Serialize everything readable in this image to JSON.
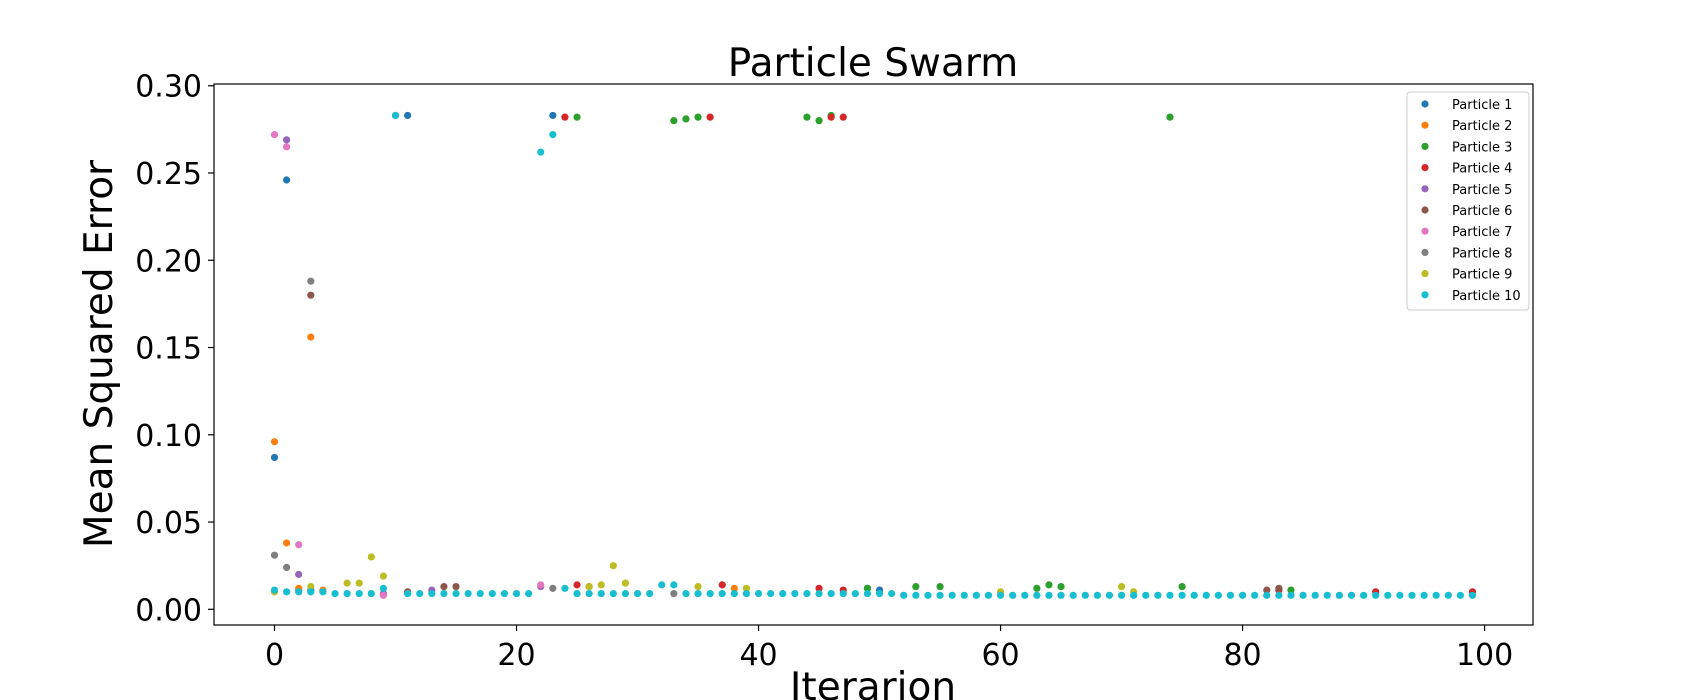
{
  "chart_data": {
    "type": "scatter",
    "title": "Particle Swarm",
    "xlabel": "Iterarion",
    "ylabel": "Mean Squared Error",
    "xlim": [
      -5,
      104
    ],
    "ylim": [
      -0.009,
      0.301
    ],
    "xticks": [
      0,
      20,
      40,
      60,
      80,
      100
    ],
    "xtick_labels": [
      "0",
      "20",
      "40",
      "60",
      "80",
      "100"
    ],
    "yticks": [
      0.0,
      0.05,
      0.1,
      0.15,
      0.2,
      0.25,
      0.3
    ],
    "ytick_labels": [
      "0.00",
      "0.05",
      "0.10",
      "0.15",
      "0.20",
      "0.25",
      "0.30"
    ],
    "grid": false,
    "legend_position": "top-right",
    "series": [
      {
        "name": "Particle 1",
        "color": "#1f77b4",
        "points": [
          [
            0,
            0.087
          ],
          [
            1,
            0.246
          ],
          [
            2,
            0.011
          ],
          [
            3,
            0.011
          ],
          [
            10,
            0.283
          ],
          [
            11,
            0.283
          ],
          [
            23,
            0.283
          ],
          [
            49,
            0.012
          ],
          [
            50,
            0.011
          ]
        ]
      },
      {
        "name": "Particle 2",
        "color": "#ff7f0e",
        "points": [
          [
            0,
            0.096
          ],
          [
            1,
            0.038
          ],
          [
            2,
            0.012
          ],
          [
            3,
            0.156
          ],
          [
            4,
            0.011
          ],
          [
            38,
            0.012
          ]
        ]
      },
      {
        "name": "Particle 3",
        "color": "#2ca02c",
        "points": [
          [
            25,
            0.282
          ],
          [
            33,
            0.28
          ],
          [
            34,
            0.281
          ],
          [
            35,
            0.282
          ],
          [
            44,
            0.282
          ],
          [
            45,
            0.28
          ],
          [
            46,
            0.283
          ],
          [
            74,
            0.282
          ],
          [
            11,
            0.009
          ],
          [
            49,
            0.012
          ],
          [
            53,
            0.013
          ],
          [
            55,
            0.013
          ],
          [
            63,
            0.012
          ],
          [
            64,
            0.014
          ],
          [
            65,
            0.013
          ],
          [
            75,
            0.013
          ],
          [
            84,
            0.011
          ]
        ]
      },
      {
        "name": "Particle 4",
        "color": "#d62728",
        "points": [
          [
            24,
            0.282
          ],
          [
            36,
            0.282
          ],
          [
            46,
            0.282
          ],
          [
            47,
            0.282
          ],
          [
            25,
            0.014
          ],
          [
            37,
            0.014
          ],
          [
            45,
            0.012
          ],
          [
            47,
            0.011
          ],
          [
            83,
            0.011
          ],
          [
            91,
            0.01
          ],
          [
            99,
            0.01
          ]
        ]
      },
      {
        "name": "Particle 5",
        "color": "#9467bd",
        "points": [
          [
            1,
            0.269
          ],
          [
            2,
            0.02
          ],
          [
            9,
            0.009
          ],
          [
            13,
            0.011
          ],
          [
            22,
            0.013
          ]
        ]
      },
      {
        "name": "Particle 6",
        "color": "#8c564b",
        "points": [
          [
            3,
            0.18
          ],
          [
            11,
            0.01
          ],
          [
            14,
            0.013
          ],
          [
            15,
            0.013
          ],
          [
            26,
            0.013
          ],
          [
            82,
            0.011
          ],
          [
            83,
            0.012
          ]
        ]
      },
      {
        "name": "Particle 7",
        "color": "#e377c2",
        "points": [
          [
            0,
            0.272
          ],
          [
            1,
            0.265
          ],
          [
            2,
            0.037
          ],
          [
            9,
            0.008
          ],
          [
            22,
            0.014
          ]
        ]
      },
      {
        "name": "Particle 8",
        "color": "#7f7f7f",
        "points": [
          [
            0,
            0.031
          ],
          [
            1,
            0.024
          ],
          [
            3,
            0.188
          ],
          [
            23,
            0.012
          ],
          [
            33,
            0.009
          ]
        ]
      },
      {
        "name": "Particle 9",
        "color": "#bcbd22",
        "points": [
          [
            0,
            0.01
          ],
          [
            3,
            0.013
          ],
          [
            6,
            0.015
          ],
          [
            7,
            0.015
          ],
          [
            8,
            0.03
          ],
          [
            9,
            0.019
          ],
          [
            26,
            0.013
          ],
          [
            27,
            0.014
          ],
          [
            28,
            0.025
          ],
          [
            29,
            0.015
          ],
          [
            35,
            0.013
          ],
          [
            39,
            0.012
          ],
          [
            60,
            0.01
          ],
          [
            70,
            0.013
          ],
          [
            71,
            0.01
          ]
        ]
      },
      {
        "name": "Particle 10",
        "color": "#17becf",
        "points": [
          [
            0,
            0.011
          ],
          [
            1,
            0.01
          ],
          [
            2,
            0.01
          ],
          [
            3,
            0.01
          ],
          [
            4,
            0.01
          ],
          [
            5,
            0.009
          ],
          [
            6,
            0.009
          ],
          [
            7,
            0.009
          ],
          [
            8,
            0.009
          ],
          [
            9,
            0.012
          ],
          [
            10,
            0.283
          ],
          [
            11,
            0.009
          ],
          [
            12,
            0.009
          ],
          [
            13,
            0.009
          ],
          [
            14,
            0.009
          ],
          [
            15,
            0.009
          ],
          [
            16,
            0.009
          ],
          [
            17,
            0.009
          ],
          [
            18,
            0.009
          ],
          [
            19,
            0.009
          ],
          [
            20,
            0.009
          ],
          [
            21,
            0.009
          ],
          [
            22,
            0.262
          ],
          [
            23,
            0.272
          ],
          [
            24,
            0.012
          ],
          [
            25,
            0.009
          ],
          [
            26,
            0.009
          ],
          [
            27,
            0.009
          ],
          [
            28,
            0.009
          ],
          [
            29,
            0.009
          ],
          [
            30,
            0.009
          ],
          [
            31,
            0.009
          ],
          [
            32,
            0.014
          ],
          [
            33,
            0.014
          ],
          [
            34,
            0.009
          ],
          [
            35,
            0.009
          ],
          [
            36,
            0.009
          ],
          [
            37,
            0.009
          ],
          [
            38,
            0.009
          ],
          [
            39,
            0.009
          ],
          [
            40,
            0.009
          ],
          [
            41,
            0.009
          ],
          [
            42,
            0.009
          ],
          [
            43,
            0.009
          ],
          [
            44,
            0.009
          ],
          [
            45,
            0.009
          ],
          [
            46,
            0.009
          ],
          [
            47,
            0.009
          ],
          [
            48,
            0.009
          ],
          [
            49,
            0.009
          ],
          [
            50,
            0.009
          ],
          [
            51,
            0.009
          ],
          [
            52,
            0.008
          ],
          [
            53,
            0.008
          ],
          [
            54,
            0.008
          ],
          [
            55,
            0.008
          ],
          [
            56,
            0.008
          ],
          [
            57,
            0.008
          ],
          [
            58,
            0.008
          ],
          [
            59,
            0.008
          ],
          [
            60,
            0.008
          ],
          [
            61,
            0.008
          ],
          [
            62,
            0.008
          ],
          [
            63,
            0.008
          ],
          [
            64,
            0.008
          ],
          [
            65,
            0.008
          ],
          [
            66,
            0.008
          ],
          [
            67,
            0.008
          ],
          [
            68,
            0.008
          ],
          [
            69,
            0.008
          ],
          [
            70,
            0.008
          ],
          [
            71,
            0.008
          ],
          [
            72,
            0.008
          ],
          [
            73,
            0.008
          ],
          [
            74,
            0.008
          ],
          [
            75,
            0.008
          ],
          [
            76,
            0.008
          ],
          [
            77,
            0.008
          ],
          [
            78,
            0.008
          ],
          [
            79,
            0.008
          ],
          [
            80,
            0.008
          ],
          [
            81,
            0.008
          ],
          [
            82,
            0.008
          ],
          [
            83,
            0.008
          ],
          [
            84,
            0.008
          ],
          [
            85,
            0.008
          ],
          [
            86,
            0.008
          ],
          [
            87,
            0.008
          ],
          [
            88,
            0.008
          ],
          [
            89,
            0.008
          ],
          [
            90,
            0.008
          ],
          [
            91,
            0.008
          ],
          [
            92,
            0.008
          ],
          [
            93,
            0.008
          ],
          [
            94,
            0.008
          ],
          [
            95,
            0.008
          ],
          [
            96,
            0.008
          ],
          [
            97,
            0.008
          ],
          [
            98,
            0.008
          ],
          [
            99,
            0.008
          ]
        ]
      }
    ]
  }
}
